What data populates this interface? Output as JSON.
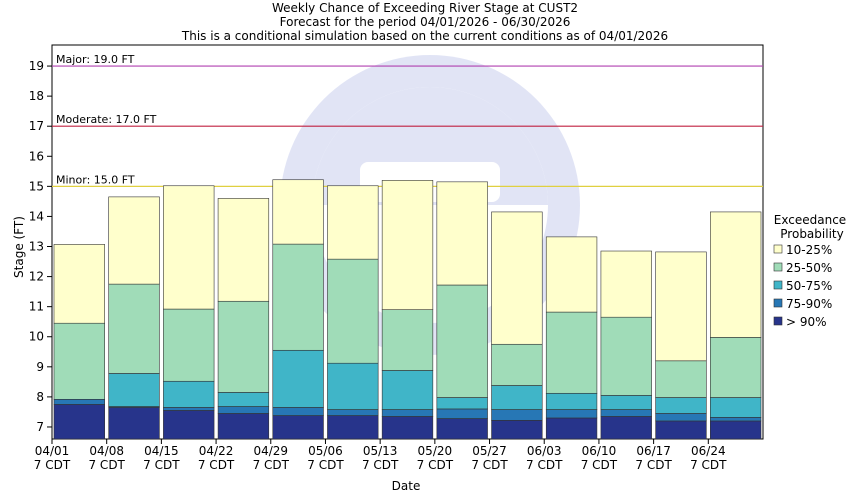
{
  "chart_data": {
    "type": "bar",
    "title_lines": [
      "Weekly Chance of Exceeding River Stage at CUST2",
      "Forecast for the period 04/01/2026 - 06/30/2026",
      "This is a conditional simulation based on the current conditions as of 04/01/2026"
    ],
    "xlabel": "Date",
    "ylabel": "Stage (FT)",
    "ylim": [
      6.6,
      19.7
    ],
    "yticks": [
      7,
      8,
      9,
      10,
      11,
      12,
      13,
      14,
      15,
      16,
      17,
      18,
      19
    ],
    "categories": [
      {
        "date": "04/01",
        "tz": "7 CDT"
      },
      {
        "date": "04/08",
        "tz": "7 CDT"
      },
      {
        "date": "04/15",
        "tz": "7 CDT"
      },
      {
        "date": "04/22",
        "tz": "7 CDT"
      },
      {
        "date": "04/29",
        "tz": "7 CDT"
      },
      {
        "date": "05/06",
        "tz": "7 CDT"
      },
      {
        "date": "05/13",
        "tz": "7 CDT"
      },
      {
        "date": "05/20",
        "tz": "7 CDT"
      },
      {
        "date": "05/27",
        "tz": "7 CDT"
      },
      {
        "date": "06/03",
        "tz": "7 CDT"
      },
      {
        "date": "06/10",
        "tz": "7 CDT"
      },
      {
        "date": "06/17",
        "tz": "7 CDT"
      },
      {
        "date": "06/24",
        "tz": "7 CDT"
      }
    ],
    "thresholds": [
      {
        "label": "Major: 19.0 FT",
        "value": 19.0,
        "color": "#b040b0"
      },
      {
        "label": "Moderate: 17.0 FT",
        "value": 17.0,
        "color": "#c02040"
      },
      {
        "label": "Minor: 15.0 FT",
        "value": 15.0,
        "color": "#e0d040"
      }
    ],
    "legend": {
      "title_lines": [
        "Exceedance",
        "Probability"
      ],
      "placement": "right"
    },
    "series": [
      {
        "name": "> 90%",
        "color": "#27348b",
        "values": [
          7.75,
          7.65,
          7.55,
          7.45,
          7.38,
          7.38,
          7.35,
          7.28,
          7.22,
          7.3,
          7.35,
          7.2,
          7.2
        ]
      },
      {
        "name": "75-90%",
        "color": "#2777b5",
        "values": [
          7.92,
          7.68,
          7.65,
          7.68,
          7.65,
          7.58,
          7.58,
          7.6,
          7.58,
          7.58,
          7.58,
          7.45,
          7.32
        ]
      },
      {
        "name": "50-75%",
        "color": "#40b5c8",
        "values": [
          7.92,
          8.78,
          8.52,
          8.15,
          9.55,
          9.12,
          8.88,
          7.98,
          8.38,
          8.12,
          8.05,
          7.98,
          7.98
        ]
      },
      {
        "name": "25-50%",
        "color": "#a0dcb8",
        "values": [
          10.45,
          11.75,
          10.92,
          11.18,
          13.08,
          12.58,
          10.9,
          11.72,
          9.75,
          10.82,
          10.65,
          9.2,
          9.98
        ]
      },
      {
        "name": "10-25%",
        "color": "#ffffcc",
        "values": [
          13.07,
          14.65,
          15.02,
          14.6,
          15.22,
          15.02,
          15.2,
          15.15,
          14.15,
          13.32,
          12.85,
          12.82,
          14.15
        ]
      }
    ]
  }
}
